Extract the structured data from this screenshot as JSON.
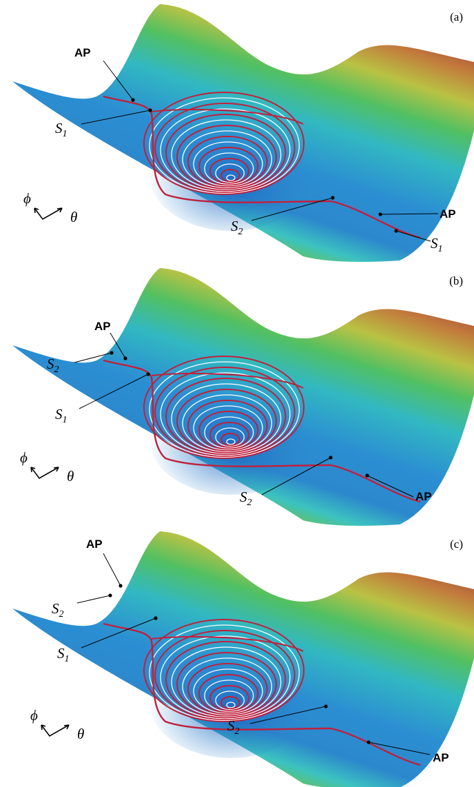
{
  "panels": [
    {
      "label": "(a)",
      "annotations": [
        {
          "text": "AP"
        },
        {
          "main": "S",
          "sub": "1"
        },
        {
          "main": "S",
          "sub": "2"
        },
        {
          "text": "AP"
        },
        {
          "main": "S",
          "sub": "1"
        }
      ],
      "axes": {
        "phi": "ϕ",
        "theta": "θ"
      }
    },
    {
      "label": "(b)",
      "annotations": [
        {
          "main": "S",
          "sub": "2"
        },
        {
          "text": "AP"
        },
        {
          "main": "S",
          "sub": "1"
        },
        {
          "main": "S",
          "sub": "2"
        },
        {
          "text": "AP"
        }
      ],
      "axes": {
        "phi": "ϕ",
        "theta": "θ"
      }
    },
    {
      "label": "(c)",
      "annotations": [
        {
          "text": "AP"
        },
        {
          "main": "S",
          "sub": "2"
        },
        {
          "main": "S",
          "sub": "1"
        },
        {
          "main": "S",
          "sub": "2"
        },
        {
          "text": "AP"
        }
      ],
      "axes": {
        "phi": "ϕ",
        "theta": "θ"
      }
    }
  ]
}
